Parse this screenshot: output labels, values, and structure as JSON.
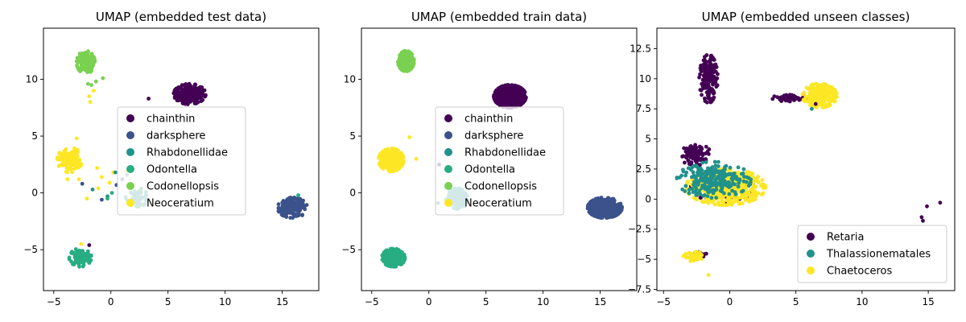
{
  "colors": {
    "chainthin": "#440154",
    "darksphere": "#3b528b",
    "Rhabdonellidae": "#21918c",
    "Odontella": "#27ad81",
    "Codonellopsis": "#7ad151",
    "Neoceratium": "#fde725",
    "Retaria": "#440154",
    "Thalassionematales": "#21918c",
    "Chaetoceros": "#fde725"
  },
  "chart_data": [
    {
      "type": "scatter",
      "title": "UMAP (embedded test data)",
      "xlim": [
        -5.9,
        18.2
      ],
      "ylim": [
        -8.6,
        14.5
      ],
      "xticks": [
        -5,
        0,
        5,
        10,
        15
      ],
      "yticks": [
        -5,
        0,
        5,
        10
      ],
      "legend": {
        "position": "center",
        "entries": [
          "chainthin",
          "darksphere",
          "Rhabdonellidae",
          "Odontella",
          "Codonellopsis",
          "Neoceratium"
        ]
      },
      "clusters": [
        {
          "series": "chainthin",
          "cx": 6.9,
          "cy": 8.7,
          "rx": 1.4,
          "ry": 0.9,
          "n": 280
        },
        {
          "series": "darksphere",
          "cx": 15.9,
          "cy": -1.3,
          "rx": 1.3,
          "ry": 0.9,
          "n": 190
        },
        {
          "series": "Rhabdonellidae",
          "cx": 2.4,
          "cy": -0.4,
          "rx": 1.1,
          "ry": 0.8,
          "n": 60
        },
        {
          "series": "Odontella",
          "cx": -2.7,
          "cy": -5.7,
          "rx": 1.0,
          "ry": 0.8,
          "n": 130
        },
        {
          "series": "Codonellopsis",
          "cx": -2.2,
          "cy": 11.5,
          "rx": 0.8,
          "ry": 1.0,
          "n": 150
        },
        {
          "series": "Neoceratium",
          "cx": -3.6,
          "cy": 2.9,
          "rx": 1.1,
          "ry": 1.1,
          "n": 140
        }
      ],
      "points": [
        {
          "series": "Codonellopsis",
          "x": -2.0,
          "y": 9.6
        },
        {
          "series": "Codonellopsis",
          "x": -1.7,
          "y": 9.5
        },
        {
          "series": "Codonellopsis",
          "x": -1.3,
          "y": 9.8
        },
        {
          "series": "Codonellopsis",
          "x": -0.7,
          "y": 10.1
        },
        {
          "series": "Neoceratium",
          "x": -1.9,
          "y": 8.5
        },
        {
          "series": "Neoceratium",
          "x": -1.8,
          "y": 8.0
        },
        {
          "series": "Neoceratium",
          "x": -1.5,
          "y": 9.0
        },
        {
          "series": "chainthin",
          "x": 3.3,
          "y": 8.3
        },
        {
          "series": "Neoceratium",
          "x": -1.2,
          "y": 2.2
        },
        {
          "series": "Neoceratium",
          "x": -0.8,
          "y": 1.4
        },
        {
          "series": "Neoceratium",
          "x": 0.2,
          "y": 1.8
        },
        {
          "series": "Neoceratium",
          "x": -2.8,
          "y": 1.2
        },
        {
          "series": "Neoceratium",
          "x": -0.1,
          "y": 0.9
        },
        {
          "series": "Neoceratium",
          "x": -3.8,
          "y": 1.2
        },
        {
          "series": "Neoceratium",
          "x": -2.1,
          "y": -0.5
        },
        {
          "series": "Neoceratium",
          "x": -1.1,
          "y": 0.4
        },
        {
          "series": "Neoceratium",
          "x": -3.0,
          "y": 4.8
        },
        {
          "series": "Neoceratium",
          "x": 1.3,
          "y": 1.9
        },
        {
          "series": "Neoceratium",
          "x": -2.6,
          "y": -4.5
        },
        {
          "series": "darksphere",
          "x": -2.5,
          "y": 0.8
        },
        {
          "series": "darksphere",
          "x": 1.0,
          "y": 1.2
        },
        {
          "series": "darksphere",
          "x": -0.8,
          "y": -0.6
        },
        {
          "series": "darksphere",
          "x": 0.5,
          "y": 0.7
        },
        {
          "series": "Rhabdonellidae",
          "x": 0.4,
          "y": 1.8
        },
        {
          "series": "Rhabdonellidae",
          "x": -1.6,
          "y": 0.3
        },
        {
          "series": "Rhabdonellidae",
          "x": -0.3,
          "y": -0.3
        },
        {
          "series": "Rhabdonellidae",
          "x": 1.4,
          "y": 1.6
        },
        {
          "series": "Odontella",
          "x": -0.3,
          "y": -0.5
        },
        {
          "series": "Odontella",
          "x": 0.1,
          "y": 0.0
        },
        {
          "series": "Odontella",
          "x": 16.4,
          "y": -0.2
        },
        {
          "series": "chainthin",
          "x": -1.9,
          "y": -4.6
        }
      ]
    },
    {
      "type": "scatter",
      "title": "UMAP (embedded train data)",
      "xlim": [
        -5.9,
        18.2
      ],
      "ylim": [
        -8.6,
        14.5
      ],
      "xticks": [
        -5,
        0,
        5,
        10,
        15
      ],
      "yticks": [
        -5,
        0,
        5,
        10
      ],
      "legend": {
        "position": "center",
        "entries": [
          "chainthin",
          "darksphere",
          "Rhabdonellidae",
          "Odontella",
          "Codonellopsis",
          "Neoceratium"
        ]
      },
      "clusters": [
        {
          "series": "chainthin",
          "cx": 7.1,
          "cy": 8.5,
          "rx": 1.4,
          "ry": 1.0,
          "n": 650
        },
        {
          "series": "darksphere",
          "cx": 15.4,
          "cy": -1.3,
          "rx": 1.5,
          "ry": 0.9,
          "n": 520
        },
        {
          "series": "Rhabdonellidae",
          "cx": 2.5,
          "cy": -0.5,
          "rx": 0.9,
          "ry": 0.9,
          "n": 220
        },
        {
          "series": "Odontella",
          "cx": -3.1,
          "cy": -5.7,
          "rx": 1.0,
          "ry": 0.8,
          "n": 380
        },
        {
          "series": "Codonellopsis",
          "cx": -2.0,
          "cy": 11.6,
          "rx": 0.7,
          "ry": 0.9,
          "n": 380
        },
        {
          "series": "Neoceratium",
          "cx": -3.3,
          "cy": 2.9,
          "rx": 1.1,
          "ry": 1.0,
          "n": 380
        }
      ],
      "points": [
        {
          "series": "Neoceratium",
          "x": -1.7,
          "y": 4.9
        },
        {
          "series": "Neoceratium",
          "x": -1.1,
          "y": 3.0
        },
        {
          "series": "chainthin",
          "x": 0.9,
          "y": 2.5
        },
        {
          "series": "Rhabdonellidae",
          "x": 0.8,
          "y": -0.9
        },
        {
          "series": "Rhabdonellidae",
          "x": 1.5,
          "y": -0.6
        }
      ]
    },
    {
      "type": "scatter",
      "title": "UMAP (embedded unseen classes)",
      "xlim": [
        -5.5,
        17.0
      ],
      "ylim": [
        -7.6,
        14.2
      ],
      "xticks": [
        -5,
        0,
        5,
        10,
        15
      ],
      "yticks": [
        -7.5,
        -5.0,
        -2.5,
        0.0,
        2.5,
        5.0,
        7.5,
        10.0,
        12.5
      ],
      "legend": {
        "position": "lower right",
        "entries": [
          "Retaria",
          "Thalassionematales",
          "Chaetoceros"
        ]
      },
      "clusters": [
        {
          "series": "Retaria",
          "cx": -1.6,
          "cy": 10.0,
          "rx": 0.7,
          "ry": 2.0,
          "n": 180
        },
        {
          "series": "Retaria",
          "cx": 4.6,
          "cy": 8.4,
          "rx": 1.4,
          "ry": 0.3,
          "n": 60
        },
        {
          "series": "Retaria",
          "cx": -2.6,
          "cy": 3.7,
          "rx": 1.2,
          "ry": 0.9,
          "n": 80
        },
        {
          "series": "Retaria",
          "cx": -0.5,
          "cy": 1.0,
          "rx": 2.5,
          "ry": 1.3,
          "n": 80
        },
        {
          "series": "Retaria",
          "cx": -2.2,
          "cy": -4.5,
          "rx": 0.5,
          "ry": 0.3,
          "n": 12
        },
        {
          "series": "Chaetoceros",
          "cx": 6.8,
          "cy": 8.6,
          "rx": 1.3,
          "ry": 1.0,
          "n": 300
        },
        {
          "series": "Chaetoceros",
          "cx": -0.3,
          "cy": 1.0,
          "rx": 3.0,
          "ry": 1.5,
          "n": 600
        },
        {
          "series": "Chaetoceros",
          "cx": -2.6,
          "cy": -4.8,
          "rx": 0.9,
          "ry": 0.4,
          "n": 45
        },
        {
          "series": "Thalassionematales",
          "cx": -1.2,
          "cy": 1.6,
          "rx": 2.8,
          "ry": 1.5,
          "n": 250
        }
      ],
      "points": [
        {
          "series": "Retaria",
          "x": 14.5,
          "y": -1.5
        },
        {
          "series": "Retaria",
          "x": 14.6,
          "y": -1.8
        },
        {
          "series": "Retaria",
          "x": 14.9,
          "y": -0.6
        },
        {
          "series": "Retaria",
          "x": 15.9,
          "y": -0.3
        },
        {
          "series": "Thalassionematales",
          "x": 6.2,
          "y": 7.5
        },
        {
          "series": "Retaria",
          "x": 6.5,
          "y": 7.9
        },
        {
          "series": "Chaetoceros",
          "x": -1.6,
          "y": -6.3
        }
      ]
    }
  ]
}
